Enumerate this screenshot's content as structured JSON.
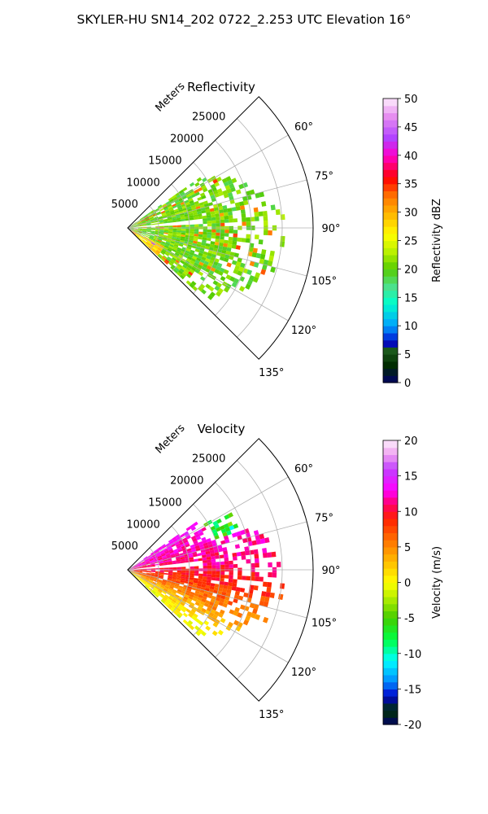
{
  "figure": {
    "title": "SKYLER-HU  SN14_202  0722_2.253 UTC Elevation 16°"
  },
  "chart_data": [
    {
      "type": "heatmap",
      "subtype": "polar-sector (radar PPI)",
      "title": "Reflectivity",
      "radial_label": "Meters",
      "theta_ticks": [
        "60°",
        "75°",
        "90°",
        "105°",
        "120°",
        "135°"
      ],
      "theta_range_deg": [
        45,
        135
      ],
      "r_ticks": [
        "5000",
        "10000",
        "15000",
        "20000",
        "25000"
      ],
      "r_range": [
        0,
        30000
      ],
      "grid": true,
      "colorbar": {
        "label": "Reflectivity dBZ",
        "ticks": [
          "0",
          "5",
          "10",
          "15",
          "20",
          "25",
          "30",
          "35",
          "40",
          "45",
          "50"
        ],
        "range": [
          0,
          50
        ],
        "stops": [
          {
            "v": 0,
            "color": "#000066"
          },
          {
            "v": 3,
            "color": "#002a00"
          },
          {
            "v": 6,
            "color": "#1f5f1f"
          },
          {
            "v": 7,
            "color": "#0000cc"
          },
          {
            "v": 10,
            "color": "#00a0ff"
          },
          {
            "v": 14,
            "color": "#00ffcc"
          },
          {
            "v": 17,
            "color": "#4fe08a"
          },
          {
            "v": 20,
            "color": "#55cc00"
          },
          {
            "v": 23,
            "color": "#b8f000"
          },
          {
            "v": 26,
            "color": "#ffff00"
          },
          {
            "v": 30,
            "color": "#ffb000"
          },
          {
            "v": 33,
            "color": "#ff7000"
          },
          {
            "v": 36,
            "color": "#ff0000"
          },
          {
            "v": 40,
            "color": "#ff00cc"
          },
          {
            "v": 43,
            "color": "#b040ff"
          },
          {
            "v": 47,
            "color": "#e890f0"
          },
          {
            "v": 50,
            "color": "#fdeefd"
          }
        ]
      },
      "data_summary": {
        "echo_azimuth_deg": [
          55,
          132
        ],
        "echo_range_m": [
          0,
          25000
        ],
        "dominant_values_dBZ": [
          15,
          25
        ],
        "peak_values_dBZ": [
          30,
          38
        ]
      }
    },
    {
      "type": "heatmap",
      "subtype": "polar-sector (radar PPI)",
      "title": "Velocity",
      "radial_label": "Meters",
      "theta_ticks": [
        "60°",
        "75°",
        "90°",
        "105°",
        "120°",
        "135°"
      ],
      "theta_range_deg": [
        45,
        135
      ],
      "r_ticks": [
        "5000",
        "10000",
        "15000",
        "20000",
        "25000"
      ],
      "r_range": [
        0,
        30000
      ],
      "grid": true,
      "colorbar": {
        "label": "Velocity (m/s)",
        "ticks": [
          "-20",
          "-15",
          "-10",
          "-5",
          "0",
          "5",
          "10",
          "15",
          "20"
        ],
        "range": [
          -20,
          20
        ],
        "stops": [
          {
            "v": -20,
            "color": "#000066"
          },
          {
            "v": -18,
            "color": "#003300"
          },
          {
            "v": -16,
            "color": "#0000cc"
          },
          {
            "v": -14,
            "color": "#0088ff"
          },
          {
            "v": -11,
            "color": "#00ffff"
          },
          {
            "v": -8,
            "color": "#00ff44"
          },
          {
            "v": -5,
            "color": "#44cc00"
          },
          {
            "v": -2,
            "color": "#bbf000"
          },
          {
            "v": 0,
            "color": "#ffff00"
          },
          {
            "v": 3,
            "color": "#ffbb00"
          },
          {
            "v": 6,
            "color": "#ff7000"
          },
          {
            "v": 9,
            "color": "#ff2000"
          },
          {
            "v": 11,
            "color": "#ff0066"
          },
          {
            "v": 13,
            "color": "#ff00ff"
          },
          {
            "v": 16,
            "color": "#c040ff"
          },
          {
            "v": 18,
            "color": "#f0a0f0"
          },
          {
            "v": 20,
            "color": "#fdeefd"
          }
        ]
      },
      "data_summary": {
        "echo_azimuth_deg": [
          55,
          132
        ],
        "echo_range_m": [
          0,
          25000
        ],
        "values_by_azimuth_m_s": [
          {
            "azimuth": 60,
            "v": 13
          },
          {
            "azimuth": 70,
            "v": 12
          },
          {
            "azimuth": 85,
            "v": 11
          },
          {
            "azimuth": 100,
            "v": 8
          },
          {
            "azimuth": 115,
            "v": 4
          },
          {
            "azimuth": 128,
            "v": 0
          }
        ]
      }
    }
  ]
}
